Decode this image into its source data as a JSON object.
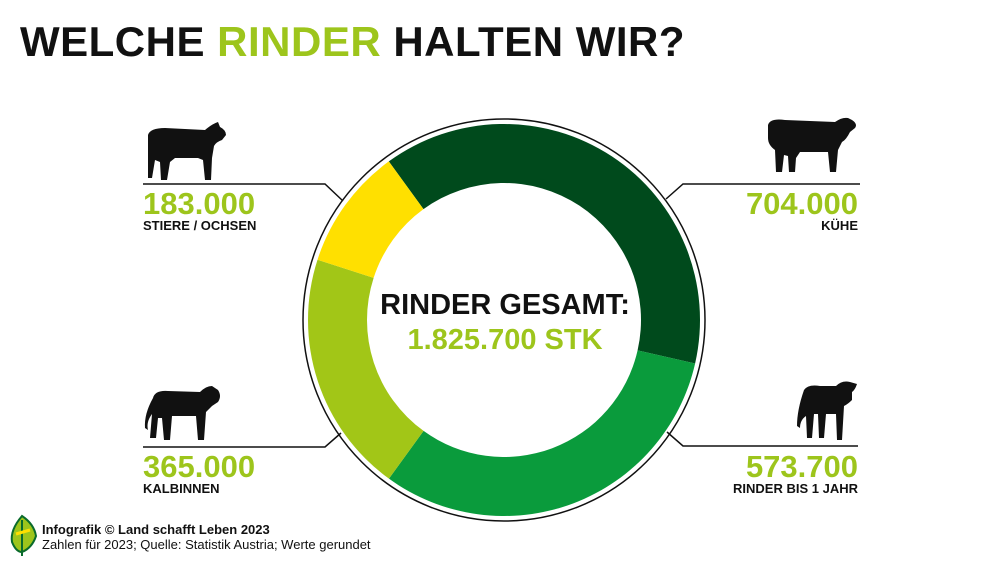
{
  "title": {
    "part1": "WELCHE ",
    "accent": "RINDER",
    "part2": " HALTEN WIR?"
  },
  "center": {
    "label": "RINDER GESAMT:",
    "total": "1.825.700 STK"
  },
  "chart_data": {
    "type": "pie",
    "donut": true,
    "total": 1825700,
    "categories": [
      "KÜHE",
      "RINDER BIS 1 JAHR",
      "KALBINNEN",
      "STIERE / OCHSEN"
    ],
    "values": [
      704000,
      573700,
      365000,
      183000
    ],
    "value_labels": [
      "704.000",
      "573.700",
      "365.000",
      "183.000"
    ],
    "colors": [
      "#004a1c",
      "#0a9b3c",
      "#a2c617",
      "#ffe000"
    ]
  },
  "colors": {
    "accent": "#9dc51c",
    "text": "#111111"
  },
  "icons": [
    "cow-icon",
    "heifer-icon",
    "bull-icon",
    "calf-icon",
    "leaf-logo-icon"
  ],
  "footer": {
    "line1": "Infografik © Land schafft Leben 2023",
    "line2": "Zahlen für 2023; Quelle: Statistik Austria; Werte gerundet"
  }
}
